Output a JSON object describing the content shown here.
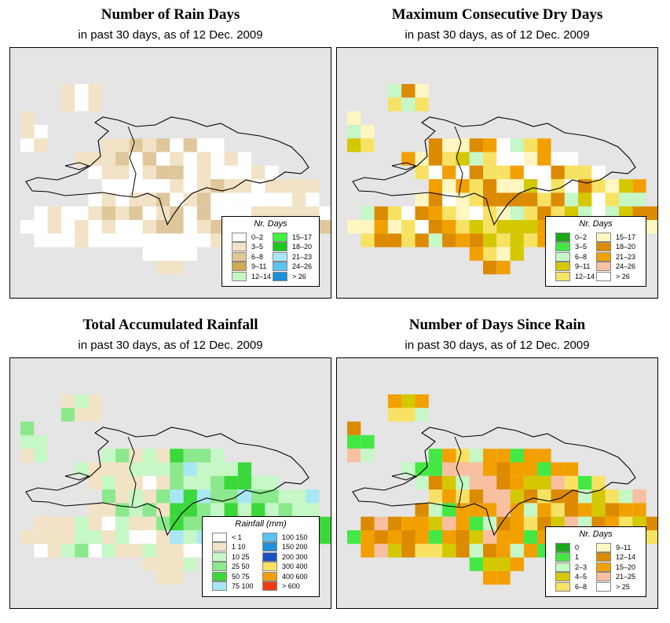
{
  "panels": [
    {
      "id": "rain_days",
      "title": "Number of Rain Days",
      "subtitle": "in past 30 days, as of  12 Dec. 2009",
      "legend": {
        "title": "Nr. Days",
        "items": [
          {
            "label": "0–2",
            "color": "#ffffff"
          },
          {
            "label": "3–5",
            "color": "#f2e3c6"
          },
          {
            "label": "6–8",
            "color": "#dfc79b"
          },
          {
            "label": "9–11",
            "color": "#cfaa4e"
          },
          {
            "label": "12–14",
            "color": "#c6f7c6"
          },
          {
            "label": "15–17",
            "color": "#3ef23e"
          },
          {
            "label": "18–20",
            "color": "#1ec81e"
          },
          {
            "label": "21–23",
            "color": "#a8e8f5"
          },
          {
            "label": "24–26",
            "color": "#5cc2f0"
          },
          {
            "label": "> 26",
            "color": "#1e8fd8"
          }
        ]
      }
    },
    {
      "id": "max_dry",
      "title": "Maximum Consecutive Dry Days",
      "subtitle": "in past 30 days, as of  12 Dec. 2009",
      "legend": {
        "title": "Nr. Days",
        "items": [
          {
            "label": "0–2",
            "color": "#1aa81a"
          },
          {
            "label": "3–5",
            "color": "#44e844"
          },
          {
            "label": "6–8",
            "color": "#c6f7c6"
          },
          {
            "label": "9–11",
            "color": "#d4c800"
          },
          {
            "label": "12–14",
            "color": "#f8e264"
          },
          {
            "label": "15–17",
            "color": "#fff6c2"
          },
          {
            "label": "18–20",
            "color": "#dc8a00"
          },
          {
            "label": "21–23",
            "color": "#f2a000"
          },
          {
            "label": "24–26",
            "color": "#f8c0a0"
          },
          {
            "label": "> 26",
            "color": "#ffffff"
          }
        ]
      }
    },
    {
      "id": "rainfall",
      "title": "Total Accumulated Rainfall",
      "subtitle": "in past 30 days, as of  12 Dec. 2009",
      "legend": {
        "title": "Rainfall (mm)",
        "items": [
          {
            "label": "< 1",
            "color": "#ffffff"
          },
          {
            "label": "1    10",
            "color": "#f2e3c6"
          },
          {
            "label": "10    25",
            "color": "#c6f7c6"
          },
          {
            "label": "25    50",
            "color": "#8ce88c"
          },
          {
            "label": "50    75",
            "color": "#3ad83a"
          },
          {
            "label": "75    100",
            "color": "#a8e8f5"
          },
          {
            "label": "100    150",
            "color": "#5cc2f0"
          },
          {
            "label": "150    200",
            "color": "#1e8fd8"
          },
          {
            "label": "200    300",
            "color": "#1c50c0"
          },
          {
            "label": "300    400",
            "color": "#f8e264"
          },
          {
            "label": "400    600",
            "color": "#f2a000"
          },
          {
            "label": "> 600",
            "color": "#f03c14"
          }
        ]
      }
    },
    {
      "id": "days_since",
      "title": "Number of Days Since Rain",
      "subtitle": "in past 30 days, as of  12 Dec. 2009",
      "legend": {
        "title": "Nr. Days",
        "items": [
          {
            "label": "0",
            "color": "#1aa81a"
          },
          {
            "label": "1",
            "color": "#44e844"
          },
          {
            "label": "2–3",
            "color": "#c6f7c6"
          },
          {
            "label": "4–5",
            "color": "#d4c800"
          },
          {
            "label": "6–8",
            "color": "#f8e264"
          },
          {
            "label": "9–11",
            "color": "#fff6c2"
          },
          {
            "label": "12–14",
            "color": "#dc8a00"
          },
          {
            "label": "15–20",
            "color": "#f2a000"
          },
          {
            "label": "21–25",
            "color": "#f8c0a0"
          },
          {
            "label": "> 25",
            "color": "#ffffff"
          }
        ]
      }
    }
  ]
}
